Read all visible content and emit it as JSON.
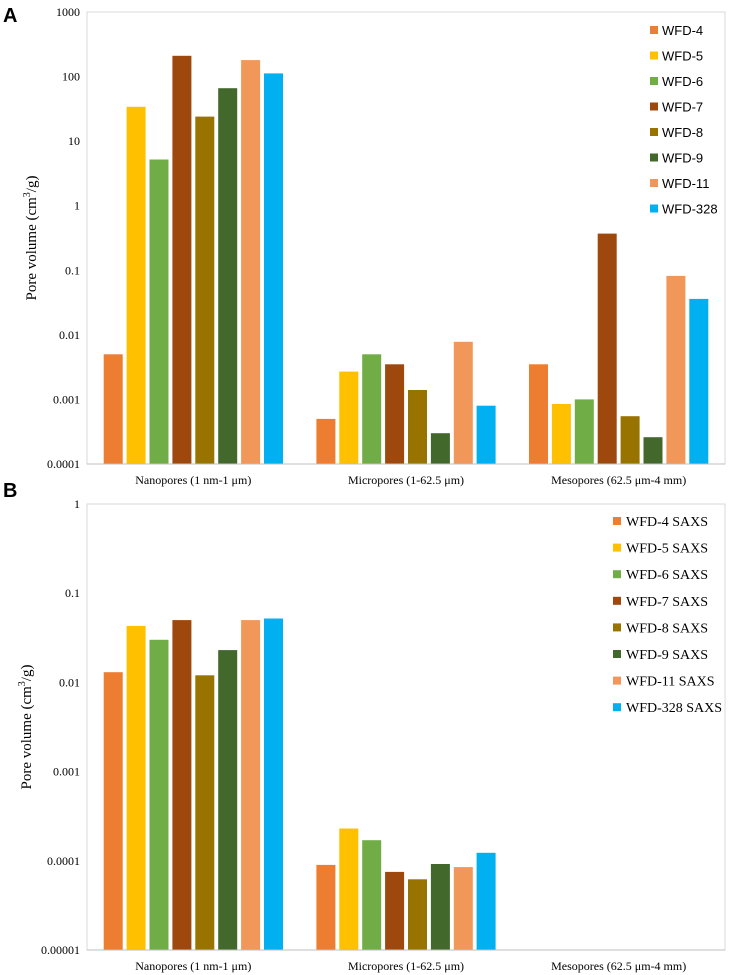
{
  "chart_data": [
    {
      "panel_letter": "A",
      "type": "bar",
      "yscale": "log",
      "ylim": [
        0.0001,
        1000
      ],
      "ylabel": "Pore volume (cm",
      "ylabel_sup": "3",
      "ylabel_end": "/g)",
      "y_ticks": [
        "0.0001",
        "0.001",
        "0.01",
        "0.1",
        "1",
        "10",
        "100",
        "1000"
      ],
      "categories": [
        "Nanopores (1 nm-1 μm)",
        "Micropores (1-62.5 μm)",
        "Mesopores (62.5 μm-4 mm)"
      ],
      "legend_position": "top-right",
      "series": [
        {
          "name": "WFD-4",
          "color": "#ED7D31",
          "values": [
            0.005,
            0.0005,
            0.0035
          ]
        },
        {
          "name": "WFD-5",
          "color": "#FFC000",
          "values": [
            34,
            0.0027,
            0.00085
          ]
        },
        {
          "name": "WFD-6",
          "color": "#70AD47",
          "values": [
            5.2,
            0.005,
            0.001
          ]
        },
        {
          "name": "WFD-7",
          "color": "#9E480E",
          "values": [
            210,
            0.0035,
            0.37
          ]
        },
        {
          "name": "WFD-8",
          "color": "#997300",
          "values": [
            24,
            0.0014,
            0.00055
          ]
        },
        {
          "name": "WFD-9",
          "color": "#43682B",
          "values": [
            66,
            0.0003,
            0.00026
          ]
        },
        {
          "name": "WFD-11",
          "color": "#F1975A",
          "values": [
            180,
            0.0078,
            0.082
          ]
        },
        {
          "name": "WFD-328",
          "color": "#00B0F0",
          "values": [
            112,
            0.0008,
            0.036
          ]
        }
      ]
    },
    {
      "panel_letter": "B",
      "type": "bar",
      "yscale": "log",
      "ylim": [
        1e-05,
        1
      ],
      "ylabel": "Pore volume (cm",
      "ylabel_sup": "3",
      "ylabel_end": "/g)",
      "y_ticks": [
        "0.00001",
        "0.0001",
        "0.001",
        "0.01",
        "0.1",
        "1"
      ],
      "categories": [
        "Nanopores (1 nm-1 μm)",
        "Micropores (1-62.5 μm)",
        "Mesopores (62.5 μm-4 mm)"
      ],
      "legend_position": "top-right",
      "series": [
        {
          "name": "WFD-4 SAXS",
          "color": "#ED7D31",
          "values": [
            0.013,
            9e-05,
            null
          ]
        },
        {
          "name": "WFD-5 SAXS",
          "color": "#FFC000",
          "values": [
            0.043,
            0.00023,
            null
          ]
        },
        {
          "name": "WFD-6 SAXS",
          "color": "#70AD47",
          "values": [
            0.03,
            0.00017,
            null
          ]
        },
        {
          "name": "WFD-7 SAXS",
          "color": "#9E480E",
          "values": [
            0.05,
            7.5e-05,
            null
          ]
        },
        {
          "name": "WFD-8 SAXS",
          "color": "#997300",
          "values": [
            0.012,
            6.2e-05,
            null
          ]
        },
        {
          "name": "WFD-9 SAXS",
          "color": "#43682B",
          "values": [
            0.023,
            9.2e-05,
            null
          ]
        },
        {
          "name": "WFD-11 SAXS",
          "color": "#F1975A",
          "values": [
            0.05,
            8.5e-05,
            null
          ]
        },
        {
          "name": "WFD-328 SAXS",
          "color": "#00B0F0",
          "values": [
            0.052,
            0.000123,
            null
          ]
        }
      ]
    }
  ]
}
